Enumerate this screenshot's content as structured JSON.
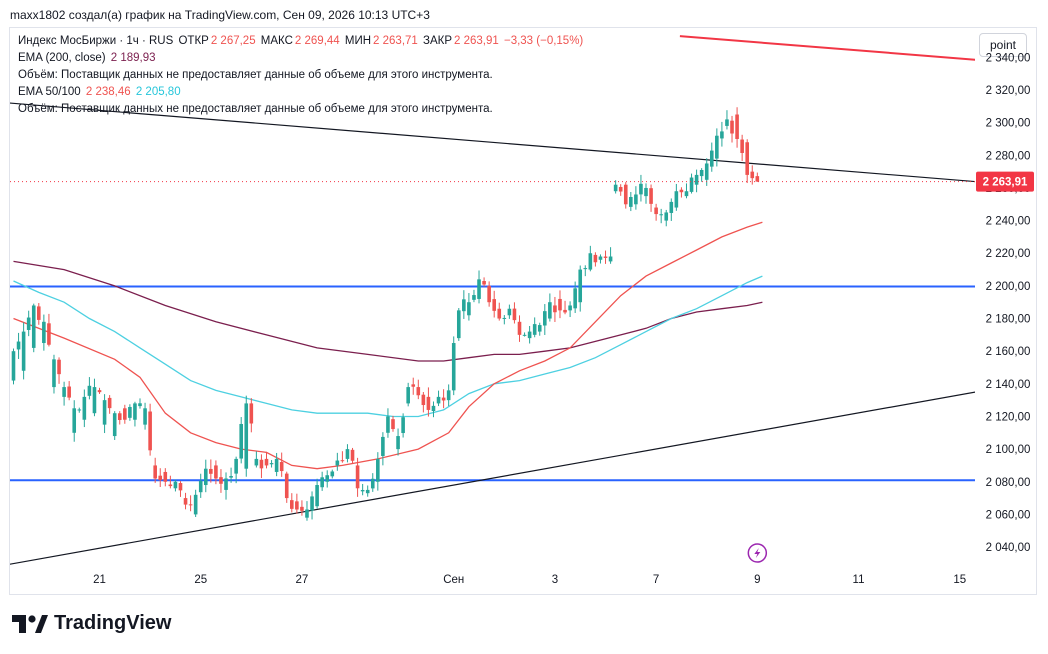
{
  "header": {
    "attribution": "maxx1802 создал(а) график на TradingView.com, Сен 09, 2026 10:13 UTC+3"
  },
  "legend": {
    "symbol": "Индекс МосБиржи · 1ч · RUS",
    "open_label": "ОТКР",
    "open_value": "2 267,25",
    "high_label": "МАКС",
    "high_value": "2 269,44",
    "low_label": "МИН",
    "low_value": "2 263,71",
    "close_label": "ЗАКР",
    "close_value": "2 263,91",
    "change": "−3,33 (−0,15%)",
    "ema200_label": "EMA (200, close)",
    "ema200_value": "2 189,93",
    "volume_note_1": "Объём: Поставщик данных не предоставляет данные об объеме для этого инструмента.",
    "ema_50_100_label": "EMA 50/100",
    "ema50_value": "2 238,46",
    "ema100_value": "2 205,80",
    "volume_note_2": "Объём: Поставщик данных не предоставляет данные об объеме для этого инструмента."
  },
  "scale_button": "point",
  "logo_text": "TradingView",
  "colors": {
    "up": "#26a69a",
    "down": "#ef5350",
    "ema50": "#ef5350",
    "ema100": "#4dd0e1",
    "ema200": "#7b1f4e",
    "hline": "#2962ff",
    "trend": "#131722",
    "redtrend": "#f23645",
    "price_tag": "#f23645"
  },
  "chart_data": {
    "type": "candlestick",
    "y_ticks": [
      "2 040,00",
      "2 060,00",
      "2 080,00",
      "2 100,00",
      "2 120,00",
      "2 140,00",
      "2 160,00",
      "2 180,00",
      "2 200,00",
      "2 220,00",
      "2 240,00",
      "2 260,00",
      "2 280,00",
      "2 300,00",
      "2 320,00",
      "2 340,00"
    ],
    "y_tick_values": [
      2040,
      2060,
      2080,
      2100,
      2120,
      2140,
      2160,
      2180,
      2200,
      2220,
      2240,
      2260,
      2280,
      2300,
      2320,
      2340
    ],
    "ylim": [
      2029,
      2358
    ],
    "x_ticks": [
      "21",
      "25",
      "27",
      "Сен",
      "3",
      "7",
      "9",
      "11",
      "15"
    ],
    "x_tick_bars": [
      17,
      37,
      57,
      87,
      107,
      127,
      147,
      167,
      187
    ],
    "last_price_label": "2 263,91",
    "last_price": 2263.91,
    "horizontal_levels": [
      2199.6,
      2080.9
    ],
    "trend_lines": [
      {
        "from": [
          -0.7,
          2312
        ],
        "to": [
          195.6,
          2262.5
        ],
        "color": "trend"
      },
      {
        "from": [
          -0.7,
          2029.5
        ],
        "to": [
          195.6,
          2138
        ],
        "color": "trend"
      },
      {
        "from": [
          131.7,
          2353
        ],
        "to": [
          195.6,
          2337.2
        ],
        "color": "redtrend"
      }
    ],
    "anchors": [
      [
        0,
        2142,
        2160
      ],
      [
        2,
        2148,
        2172
      ],
      [
        4,
        2162,
        2188
      ],
      [
        6,
        2165,
        2178
      ],
      [
        8,
        2138,
        2155
      ],
      [
        10,
        2132,
        2138
      ],
      [
        12,
        2110,
        2125
      ],
      [
        14,
        2118,
        2132
      ],
      [
        16,
        2122,
        2138
      ],
      [
        18,
        2115,
        2130
      ],
      [
        20,
        2108,
        2122
      ],
      [
        22,
        2125,
        2118
      ],
      [
        24,
        2118,
        2128
      ],
      [
        26,
        2115,
        2125
      ],
      [
        28,
        2090,
        2082
      ],
      [
        30,
        2086,
        2080
      ],
      [
        32,
        2076,
        2080
      ],
      [
        34,
        2070,
        2066
      ],
      [
        36,
        2060,
        2072
      ],
      [
        38,
        2078,
        2088
      ],
      [
        40,
        2090,
        2082
      ],
      [
        42,
        2075,
        2082
      ],
      [
        44,
        2085,
        2094
      ],
      [
        46,
        2088,
        2128
      ],
      [
        48,
        2090,
        2094
      ],
      [
        50,
        2094,
        2090
      ],
      [
        52,
        2086,
        2094
      ],
      [
        54,
        2085,
        2070
      ],
      [
        56,
        2068,
        2063
      ],
      [
        58,
        2058,
        2063
      ],
      [
        60,
        2065,
        2078
      ],
      [
        62,
        2080,
        2084
      ],
      [
        64,
        2090,
        2093
      ],
      [
        66,
        2094,
        2100
      ],
      [
        68,
        2090,
        2076
      ],
      [
        70,
        2073,
        2075
      ],
      [
        72,
        2080,
        2094
      ],
      [
        74,
        2110,
        2120
      ],
      [
        76,
        2100,
        2108
      ],
      [
        78,
        2128,
        2138
      ],
      [
        80,
        2138,
        2133
      ],
      [
        82,
        2132,
        2124
      ],
      [
        84,
        2128,
        2132
      ],
      [
        86,
        2130,
        2136
      ],
      [
        87,
        2136,
        2165
      ],
      [
        88,
        2168,
        2185
      ],
      [
        90,
        2182,
        2190
      ],
      [
        92,
        2192,
        2204
      ],
      [
        94,
        2200,
        2190
      ],
      [
        96,
        2186,
        2180
      ],
      [
        98,
        2182,
        2186
      ],
      [
        100,
        2178,
        2170
      ],
      [
        102,
        2168,
        2172
      ],
      [
        104,
        2172,
        2176
      ],
      [
        106,
        2180,
        2190
      ],
      [
        108,
        2192,
        2185
      ],
      [
        110,
        2185,
        2188
      ],
      [
        112,
        2190,
        2210
      ],
      [
        114,
        2210,
        2220
      ],
      [
        116,
        2216,
        2218
      ],
      [
        118,
        2215,
        2218
      ],
      [
        119,
        2258,
        2262
      ],
      [
        121,
        2262,
        2250
      ],
      [
        123,
        2250,
        2256
      ],
      [
        125,
        2255,
        2260
      ],
      [
        127,
        2248,
        2244
      ],
      [
        129,
        2240,
        2245
      ],
      [
        131,
        2248,
        2258
      ],
      [
        133,
        2255,
        2258
      ],
      [
        135,
        2262,
        2268
      ],
      [
        137,
        2265,
        2275
      ],
      [
        139,
        2278,
        2292
      ],
      [
        141,
        2298,
        2302
      ],
      [
        143,
        2305,
        2290
      ],
      [
        145,
        2288,
        2268
      ],
      [
        146,
        2270,
        2266
      ],
      [
        147,
        2267.25,
        2263.91
      ]
    ],
    "last_candle": {
      "open": 2267.25,
      "high": 2269.44,
      "low": 2263.71,
      "close": 2263.91
    },
    "ema50": [
      [
        0,
        2180
      ],
      [
        10,
        2168
      ],
      [
        20,
        2155
      ],
      [
        25,
        2144
      ],
      [
        30,
        2122
      ],
      [
        35,
        2110
      ],
      [
        40,
        2104
      ],
      [
        45,
        2100
      ],
      [
        50,
        2098
      ],
      [
        55,
        2090
      ],
      [
        60,
        2088
      ],
      [
        65,
        2090
      ],
      [
        72,
        2094
      ],
      [
        80,
        2100
      ],
      [
        86,
        2110
      ],
      [
        90,
        2126
      ],
      [
        95,
        2140
      ],
      [
        100,
        2148
      ],
      [
        105,
        2154
      ],
      [
        110,
        2162
      ],
      [
        115,
        2178
      ],
      [
        120,
        2194
      ],
      [
        125,
        2206
      ],
      [
        130,
        2214
      ],
      [
        135,
        2222
      ],
      [
        140,
        2230
      ],
      [
        145,
        2236
      ],
      [
        148,
        2239
      ]
    ],
    "ema100": [
      [
        0,
        2203
      ],
      [
        5,
        2196
      ],
      [
        10,
        2190
      ],
      [
        15,
        2180
      ],
      [
        20,
        2172
      ],
      [
        25,
        2162
      ],
      [
        30,
        2152
      ],
      [
        35,
        2142
      ],
      [
        40,
        2136
      ],
      [
        45,
        2132
      ],
      [
        50,
        2128
      ],
      [
        55,
        2124
      ],
      [
        60,
        2122
      ],
      [
        65,
        2122
      ],
      [
        70,
        2122
      ],
      [
        75,
        2120
      ],
      [
        80,
        2120
      ],
      [
        85,
        2124
      ],
      [
        90,
        2134
      ],
      [
        95,
        2140
      ],
      [
        100,
        2142
      ],
      [
        105,
        2146
      ],
      [
        110,
        2150
      ],
      [
        115,
        2156
      ],
      [
        120,
        2164
      ],
      [
        125,
        2172
      ],
      [
        130,
        2180
      ],
      [
        135,
        2186
      ],
      [
        140,
        2194
      ],
      [
        145,
        2202
      ],
      [
        148,
        2206
      ]
    ],
    "ema200": [
      [
        0,
        2215
      ],
      [
        10,
        2210
      ],
      [
        20,
        2200
      ],
      [
        30,
        2188
      ],
      [
        40,
        2178
      ],
      [
        50,
        2170
      ],
      [
        60,
        2162
      ],
      [
        70,
        2158
      ],
      [
        80,
        2154
      ],
      [
        85,
        2154
      ],
      [
        90,
        2156
      ],
      [
        95,
        2158
      ],
      [
        100,
        2158
      ],
      [
        105,
        2160
      ],
      [
        110,
        2162
      ],
      [
        115,
        2166
      ],
      [
        120,
        2170
      ],
      [
        125,
        2174
      ],
      [
        130,
        2180
      ],
      [
        135,
        2184
      ],
      [
        140,
        2186
      ],
      [
        145,
        2188
      ],
      [
        148,
        2190
      ]
    ]
  }
}
